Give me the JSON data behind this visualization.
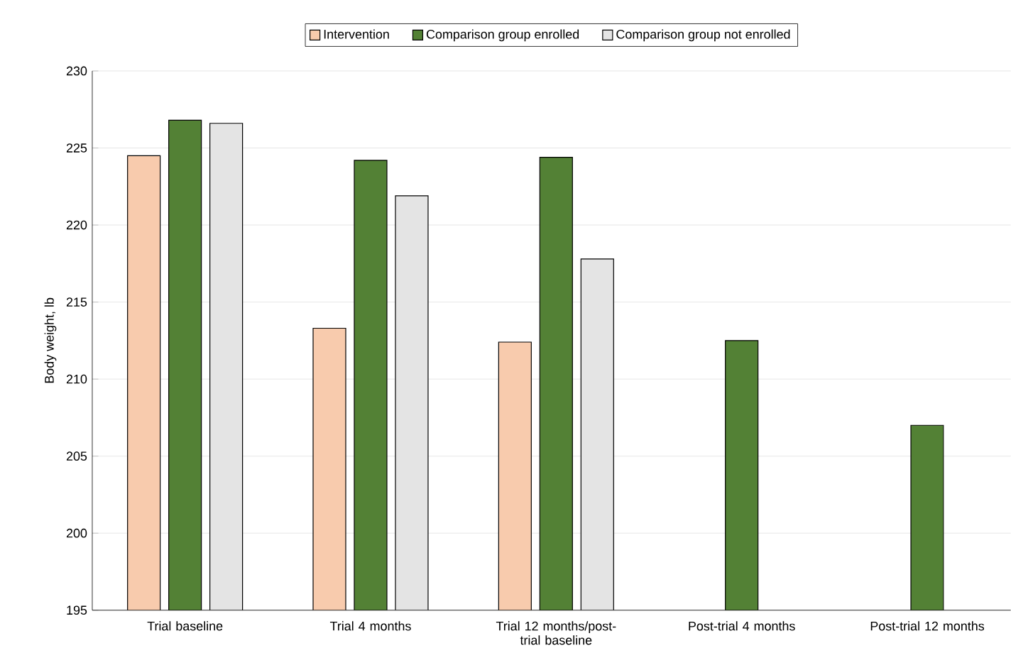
{
  "chart_data": {
    "type": "bar",
    "ylabel": "Body weight, lb",
    "categories": [
      "Trial baseline",
      "Trial 4 months",
      "Trial 12 months/post-trial baseline",
      "Post-trial 4 months",
      "Post-trial 12 months"
    ],
    "series": [
      {
        "name": "Intervention",
        "color": "#f8cbad",
        "values": [
          224.5,
          213.3,
          212.4,
          null,
          null
        ]
      },
      {
        "name": "Comparison group enrolled",
        "color": "#538135",
        "values": [
          226.8,
          224.2,
          224.4,
          212.5,
          207.0
        ]
      },
      {
        "name": "Comparison group not enrolled",
        "color": "#e4e4e4",
        "values": [
          226.6,
          221.9,
          217.8,
          null,
          null
        ]
      }
    ],
    "ylim": [
      195,
      230
    ],
    "yticks": [
      195,
      200,
      205,
      210,
      215,
      220,
      225,
      230
    ],
    "grid": "y",
    "legend": "top"
  }
}
